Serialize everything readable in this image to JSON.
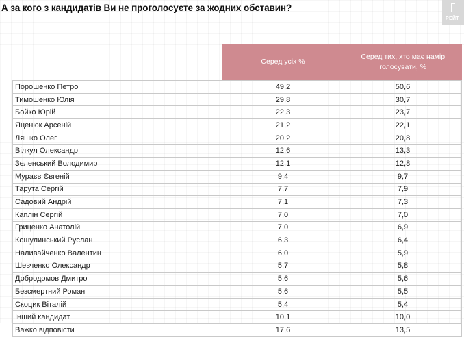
{
  "title": "А за кого з кандидатів Ви не проголосуєте за жодних обставин?",
  "logo": {
    "text": "РЕЙТ"
  },
  "table": {
    "headers": {
      "col2": "Серед усіх %",
      "col3_line1": "Серед тих, хто має намір",
      "col3_line2": "голосувати, %"
    },
    "rows": [
      {
        "name": "Порошенко Петро",
        "all": "49,2",
        "voters": "50,6"
      },
      {
        "name": "Тимошенко Юлія",
        "all": "29,8",
        "voters": "30,7"
      },
      {
        "name": "Бойко Юрій",
        "all": "22,3",
        "voters": "23,7"
      },
      {
        "name": "Яценюк Арсеній",
        "all": "21,2",
        "voters": "22,1"
      },
      {
        "name": "Ляшко Олег",
        "all": "20,2",
        "voters": "20,8"
      },
      {
        "name": "Вілкул Олександр",
        "all": "12,6",
        "voters": "13,3"
      },
      {
        "name": "Зеленський Володимир",
        "all": "12,1",
        "voters": "12,8"
      },
      {
        "name": "Мураєв Євгеній",
        "all": "9,4",
        "voters": "9,7"
      },
      {
        "name": "Тарута Сергій",
        "all": "7,7",
        "voters": "7,9"
      },
      {
        "name": "Садовий Андрій",
        "all": "7,1",
        "voters": "7,3"
      },
      {
        "name": "Каплін Сергій",
        "all": "7,0",
        "voters": "7,0"
      },
      {
        "name": "Гриценко Анатолій",
        "all": "7,0",
        "voters": "6,9"
      },
      {
        "name": "Кошулинський Руслан",
        "all": "6,3",
        "voters": "6,4"
      },
      {
        "name": "Наливайченко Валентин",
        "all": "6,0",
        "voters": "5,9"
      },
      {
        "name": "Шевченко Олександр",
        "all": "5,7",
        "voters": "5,8"
      },
      {
        "name": "Добродомов Дмитро",
        "all": "5,6",
        "voters": "5,6"
      },
      {
        "name": "Безсмертний Роман",
        "all": "5,6",
        "voters": "5,5"
      },
      {
        "name": "Скоцик Віталій",
        "all": "5,4",
        "voters": "5,4"
      },
      {
        "name": "Інший кандидат",
        "all": "10,1",
        "voters": "10,0"
      },
      {
        "name": "Важко відповісти",
        "all": "17,6",
        "voters": "13,5"
      }
    ]
  }
}
